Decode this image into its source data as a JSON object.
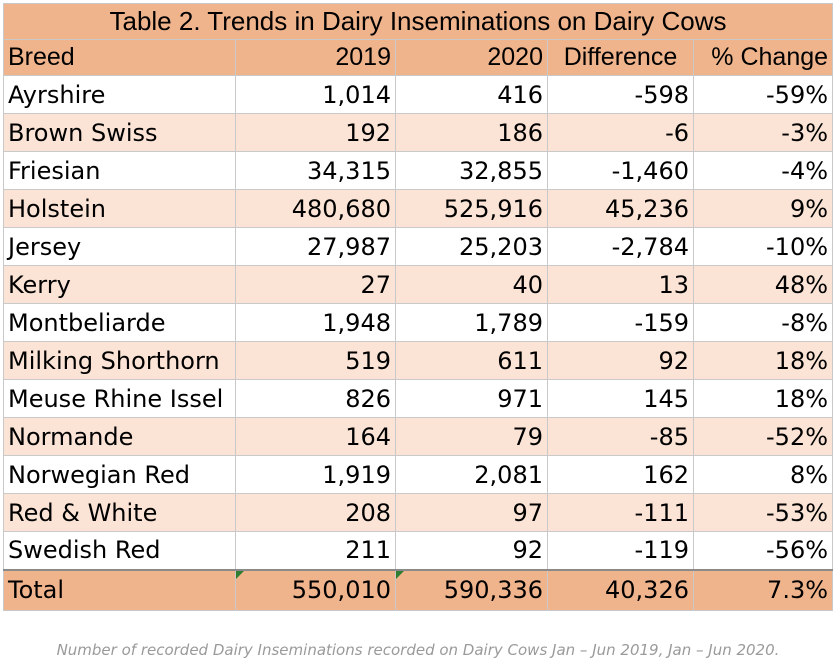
{
  "chart_data": {
    "type": "table",
    "title": "Table 2. Trends in Dairy Inseminations on Dairy Cows",
    "columns": [
      "Breed",
      "2019",
      "2020",
      "Difference",
      "% Change"
    ],
    "rows": [
      [
        "Ayrshire",
        "1,014",
        "416",
        "-598",
        "-59%"
      ],
      [
        "Brown Swiss",
        "192",
        "186",
        "-6",
        "-3%"
      ],
      [
        "Friesian",
        "34,315",
        "32,855",
        "-1,460",
        "-4%"
      ],
      [
        "Holstein",
        "480,680",
        "525,916",
        "45,236",
        "9%"
      ],
      [
        "Jersey",
        "27,987",
        "25,203",
        "-2,784",
        "-10%"
      ],
      [
        "Kerry",
        "27",
        "40",
        "13",
        "48%"
      ],
      [
        "Montbeliarde",
        "1,948",
        "1,789",
        "-159",
        "-8%"
      ],
      [
        "Milking Shorthorn",
        "519",
        "611",
        "92",
        "18%"
      ],
      [
        "Meuse Rhine Issel",
        "826",
        "971",
        "145",
        "18%"
      ],
      [
        "Normande",
        "164",
        "79",
        "-85",
        "-52%"
      ],
      [
        "Norwegian Red",
        "1,919",
        "2,081",
        "162",
        "8%"
      ],
      [
        "Red & White",
        "208",
        "97",
        "-111",
        "-53%"
      ],
      [
        "Swedish Red",
        "211",
        "92",
        "-119",
        "-56%"
      ]
    ],
    "total": [
      "Total",
      "550,010",
      "590,336",
      "40,326",
      "7.3%"
    ],
    "caption": "Number of recorded Dairy Inseminations recorded on Dairy Cows Jan – Jun 2019, Jan – Jun 2020."
  },
  "colors": {
    "header_fill": "#f0b48d",
    "band_fill": "#fbe4d5",
    "caption_text": "#9a9a9a"
  }
}
